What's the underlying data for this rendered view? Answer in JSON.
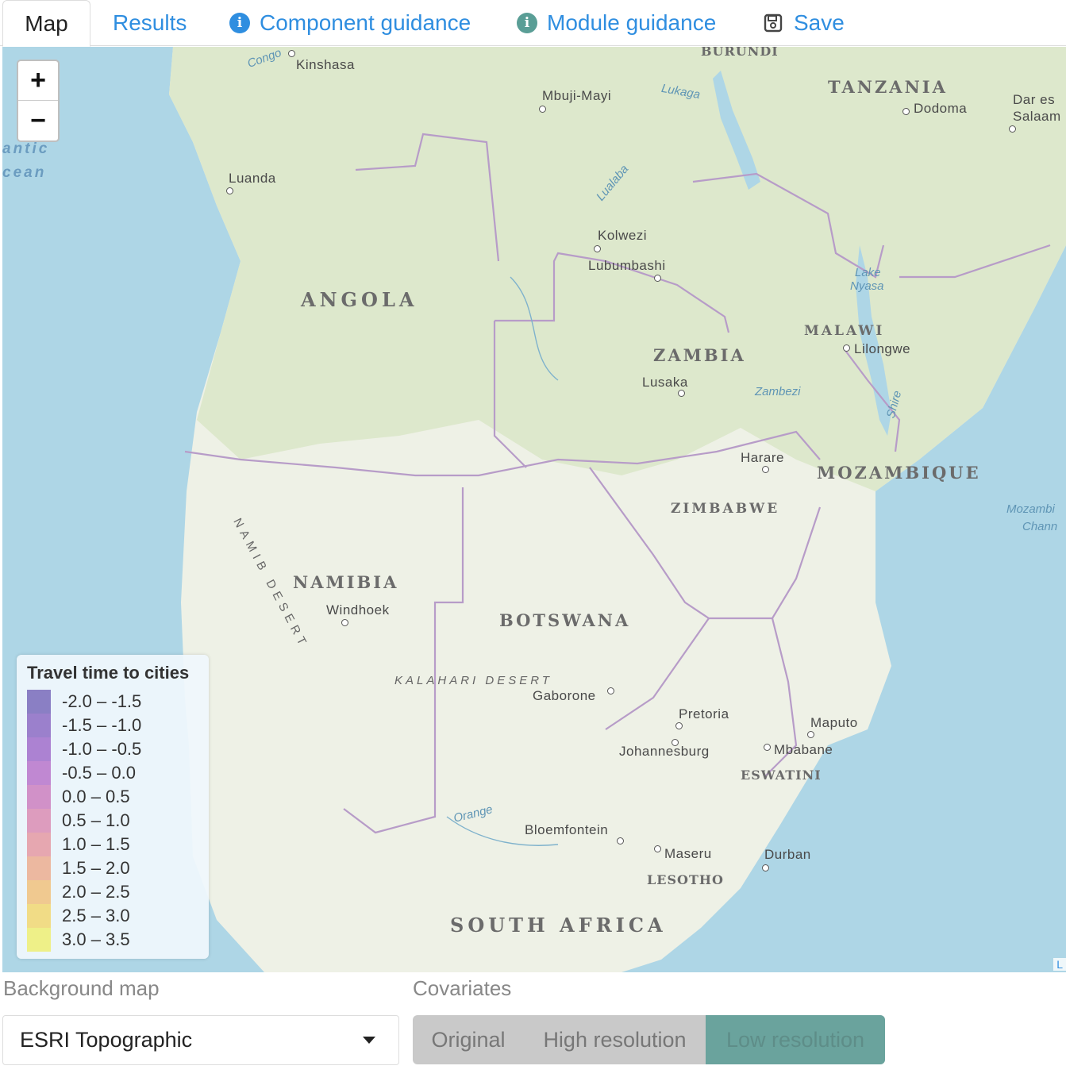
{
  "tabs": [
    {
      "label": "Map",
      "active": true
    },
    {
      "label": "Results"
    },
    {
      "label": "Component guidance",
      "icon": "info-icon"
    },
    {
      "label": "Module guidance",
      "icon": "info-icon"
    },
    {
      "label": "Save",
      "icon": "save-icon"
    }
  ],
  "map": {
    "zoom_in": "+",
    "zoom_out": "−",
    "attribution": "L",
    "oceans": [
      "antic",
      "cean",
      "Mozambi",
      "Chann"
    ],
    "countries": [
      "TANZANIA",
      "ANGOLA",
      "ZAMBIA",
      "MALAWI",
      "MOZAMBIQUE",
      "ZIMBABWE",
      "NAMIBIA",
      "BOTSWANA",
      "SOUTH AFRICA",
      "LESOTHO",
      "ESWATINI",
      "BURUNDI"
    ],
    "cities": [
      "Kinshasa",
      "Mbuji-Mayi",
      "Dodoma",
      "Dar es",
      "Salaam",
      "Luanda",
      "Kolwezi",
      "Lubumbashi",
      "Lilongwe",
      "Lusaka",
      "Harare",
      "Windhoek",
      "Gaborone",
      "Pretoria",
      "Johannesburg",
      "Maputo",
      "Mbabane",
      "Bloemfontein",
      "Maseru",
      "Durban"
    ],
    "features": [
      "Congo",
      "Lukaga",
      "Lualaba",
      "Lake",
      "Nyasa",
      "Zambezi",
      "Shire",
      "NAMIB DESERT",
      "KALAHARI DESERT",
      "Orange"
    ]
  },
  "legend": {
    "title": "Travel time to cities",
    "items": [
      {
        "label": "-2.0 – -1.5",
        "color": "#8a7fc4"
      },
      {
        "label": "-1.5 – -1.0",
        "color": "#9b80cc"
      },
      {
        "label": "-1.0 – -0.5",
        "color": "#ac82d2"
      },
      {
        "label": "-0.5 – 0.0",
        "color": "#c088d2"
      },
      {
        "label": "0.0 – 0.5",
        "color": "#d191c8"
      },
      {
        "label": "0.5 – 1.0",
        "color": "#dd9cbe"
      },
      {
        "label": "1.0 – 1.5",
        "color": "#e6a7b0"
      },
      {
        "label": "1.5 – 2.0",
        "color": "#ecb8a0"
      },
      {
        "label": "2.0 – 2.5",
        "color": "#f0c990"
      },
      {
        "label": "2.5 – 3.0",
        "color": "#f1dc86"
      },
      {
        "label": "3.0 – 3.5",
        "color": "#eef088"
      }
    ]
  },
  "controls": {
    "background_label": "Background map",
    "background_value": "ESRI Topographic",
    "covariates_label": "Covariates",
    "covariates_options": [
      "Original",
      "High resolution",
      "Low resolution"
    ],
    "covariates_selected": "Low resolution"
  }
}
